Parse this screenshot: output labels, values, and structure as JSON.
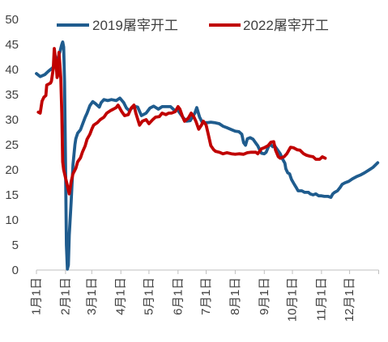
{
  "chart_data": {
    "type": "line",
    "xlim": [
      "01-01",
      "12-31"
    ],
    "ylim": [
      0,
      50
    ],
    "yticks": [
      "0",
      "5",
      "10",
      "15",
      "20",
      "25",
      "30",
      "35",
      "40",
      "45",
      "50"
    ],
    "xticks": [
      "1月1日",
      "2月1日",
      "3月1日",
      "4月1日",
      "5月1日",
      "6月1日",
      "7月1日",
      "8月1日",
      "9月1日",
      "10月1日",
      "11月1日",
      "12月1日"
    ],
    "grid": false,
    "legend": "top",
    "series": [
      {
        "name": "2019屠宰开工",
        "color": "#1F5C8E",
        "points": [
          [
            "01-01",
            39.2
          ],
          [
            "01-05",
            38.6
          ],
          [
            "01-10",
            39.0
          ],
          [
            "01-14",
            39.7
          ],
          [
            "01-18",
            40.3
          ],
          [
            "01-21",
            41.0
          ],
          [
            "01-23",
            41.8
          ],
          [
            "01-26",
            43.5
          ],
          [
            "01-28",
            45.0
          ],
          [
            "01-29",
            45.5
          ],
          [
            "01-30",
            44.5
          ],
          [
            "01-31",
            37.5
          ],
          [
            "02-01",
            21.0
          ],
          [
            "02-02",
            5.0
          ],
          [
            "02-03",
            0.2
          ],
          [
            "02-04",
            1.0
          ],
          [
            "02-05",
            7.0
          ],
          [
            "02-07",
            13.5
          ],
          [
            "02-09",
            21.0
          ],
          [
            "02-11",
            25.0
          ],
          [
            "02-12",
            26.2
          ],
          [
            "02-14",
            27.3
          ],
          [
            "02-17",
            28.0
          ],
          [
            "02-19",
            29.0
          ],
          [
            "02-22",
            30.5
          ],
          [
            "02-24",
            31.3
          ],
          [
            "02-27",
            32.8
          ],
          [
            "03-02",
            33.6
          ],
          [
            "03-05",
            33.2
          ],
          [
            "03-09",
            32.5
          ],
          [
            "03-11",
            33.4
          ],
          [
            "03-14",
            34.0
          ],
          [
            "03-18",
            33.8
          ],
          [
            "03-22",
            34.0
          ],
          [
            "03-27",
            33.8
          ],
          [
            "03-31",
            34.3
          ],
          [
            "04-04",
            33.4
          ],
          [
            "04-07",
            32.3
          ],
          [
            "04-10",
            31.8
          ],
          [
            "04-15",
            32.7
          ],
          [
            "04-19",
            32.5
          ],
          [
            "04-23",
            30.8
          ],
          [
            "04-28",
            31.3
          ],
          [
            "05-02",
            32.3
          ],
          [
            "05-06",
            32.7
          ],
          [
            "05-11",
            32.1
          ],
          [
            "05-15",
            32.6
          ],
          [
            "05-19",
            32.6
          ],
          [
            "05-24",
            32.6
          ],
          [
            "05-28",
            31.9
          ],
          [
            "06-01",
            31.8
          ],
          [
            "06-06",
            30.5
          ],
          [
            "06-10",
            29.7
          ],
          [
            "06-14",
            29.8
          ],
          [
            "06-19",
            31.3
          ],
          [
            "06-21",
            32.4
          ],
          [
            "06-24",
            30.5
          ],
          [
            "06-27",
            29.4
          ],
          [
            "07-02",
            29.4
          ],
          [
            "07-06",
            29.5
          ],
          [
            "07-10",
            29.4
          ],
          [
            "07-15",
            29.2
          ],
          [
            "07-19",
            28.7
          ],
          [
            "07-23",
            28.4
          ],
          [
            "07-28",
            28.0
          ],
          [
            "08-01",
            27.7
          ],
          [
            "08-05",
            27.6
          ],
          [
            "08-08",
            27.1
          ],
          [
            "08-10",
            25.4
          ],
          [
            "08-12",
            24.9
          ],
          [
            "08-14",
            26.2
          ],
          [
            "08-17",
            26.4
          ],
          [
            "08-20",
            26.1
          ],
          [
            "08-23",
            25.3
          ],
          [
            "08-25",
            24.8
          ],
          [
            "08-27",
            24.0
          ],
          [
            "08-29",
            23.3
          ],
          [
            "09-01",
            23.2
          ],
          [
            "09-03",
            23.5
          ],
          [
            "09-05",
            24.4
          ],
          [
            "09-07",
            25.2
          ],
          [
            "09-10",
            24.6
          ],
          [
            "09-12",
            24.8
          ],
          [
            "09-15",
            24.0
          ],
          [
            "09-18",
            23.2
          ],
          [
            "09-20",
            22.3
          ],
          [
            "09-23",
            21.3
          ],
          [
            "09-24",
            20.2
          ],
          [
            "09-26",
            19.4
          ],
          [
            "09-28",
            19.2
          ],
          [
            "09-30",
            18.1
          ],
          [
            "10-03",
            17.1
          ],
          [
            "10-05",
            16.5
          ],
          [
            "10-07",
            15.8
          ],
          [
            "10-11",
            15.8
          ],
          [
            "10-14",
            15.5
          ],
          [
            "10-18",
            15.5
          ],
          [
            "10-20",
            15.2
          ],
          [
            "10-23",
            15.0
          ],
          [
            "10-26",
            15.2
          ],
          [
            "10-29",
            14.8
          ],
          [
            "11-01",
            14.8
          ],
          [
            "11-04",
            14.7
          ],
          [
            "11-08",
            14.7
          ],
          [
            "11-11",
            14.5
          ],
          [
            "11-13",
            15.2
          ],
          [
            "11-15",
            15.5
          ],
          [
            "11-18",
            15.8
          ],
          [
            "11-21",
            16.5
          ],
          [
            "11-23",
            17.1
          ],
          [
            "11-26",
            17.4
          ],
          [
            "11-30",
            17.7
          ],
          [
            "12-04",
            18.2
          ],
          [
            "12-09",
            18.7
          ],
          [
            "12-13",
            19.0
          ],
          [
            "12-17",
            19.4
          ],
          [
            "12-22",
            20.0
          ],
          [
            "12-26",
            20.5
          ],
          [
            "12-31",
            21.4
          ]
        ]
      },
      {
        "name": "2022屠宰开工",
        "color": "#C00000",
        "points": [
          [
            "01-03",
            31.5
          ],
          [
            "01-05",
            31.3
          ],
          [
            "01-07",
            33.7
          ],
          [
            "01-09",
            34.5
          ],
          [
            "01-11",
            34.8
          ],
          [
            "01-12",
            36.9
          ],
          [
            "01-14",
            37.1
          ],
          [
            "01-16",
            37.3
          ],
          [
            "01-17",
            37.7
          ],
          [
            "01-19",
            40.2
          ],
          [
            "01-20",
            44.2
          ],
          [
            "01-22",
            41.0
          ],
          [
            "01-23",
            38.4
          ],
          [
            "01-24",
            39.0
          ],
          [
            "01-25",
            43.4
          ],
          [
            "01-26",
            41.0
          ],
          [
            "01-27",
            38.1
          ],
          [
            "01-28",
            31.3
          ],
          [
            "01-29",
            21.6
          ],
          [
            "01-30",
            20.0
          ],
          [
            "02-01",
            18.4
          ],
          [
            "02-03",
            16.8
          ],
          [
            "02-05",
            15.2
          ],
          [
            "02-07",
            17.6
          ],
          [
            "02-09",
            19.2
          ],
          [
            "02-12",
            20.3
          ],
          [
            "02-14",
            21.6
          ],
          [
            "02-17",
            22.4
          ],
          [
            "02-19",
            23.5
          ],
          [
            "02-22",
            24.8
          ],
          [
            "02-24",
            26.1
          ],
          [
            "02-27",
            27.1
          ],
          [
            "03-01",
            28.1
          ],
          [
            "03-03",
            28.9
          ],
          [
            "03-07",
            29.4
          ],
          [
            "03-10",
            30.0
          ],
          [
            "03-14",
            30.5
          ],
          [
            "03-17",
            31.3
          ],
          [
            "03-21",
            31.8
          ],
          [
            "03-24",
            32.1
          ],
          [
            "03-27",
            32.4
          ],
          [
            "03-29",
            32.9
          ],
          [
            "04-02",
            31.6
          ],
          [
            "04-05",
            30.8
          ],
          [
            "04-09",
            31.0
          ],
          [
            "04-12",
            32.3
          ],
          [
            "04-15",
            32.9
          ],
          [
            "04-17",
            31.3
          ],
          [
            "04-21",
            28.9
          ],
          [
            "04-24",
            29.7
          ],
          [
            "04-28",
            30.0
          ],
          [
            "05-01",
            29.2
          ],
          [
            "05-05",
            30.0
          ],
          [
            "05-08",
            30.5
          ],
          [
            "05-12",
            30.6
          ],
          [
            "05-15",
            31.3
          ],
          [
            "05-19",
            31.0
          ],
          [
            "05-22",
            31.3
          ],
          [
            "05-25",
            31.3
          ],
          [
            "05-29",
            31.6
          ],
          [
            "06-01",
            32.6
          ],
          [
            "06-03",
            32.1
          ],
          [
            "06-06",
            30.5
          ],
          [
            "06-08",
            29.7
          ],
          [
            "06-12",
            30.3
          ],
          [
            "06-15",
            31.3
          ],
          [
            "06-18",
            30.5
          ],
          [
            "06-20",
            29.7
          ],
          [
            "06-23",
            28.1
          ],
          [
            "06-26",
            28.9
          ],
          [
            "06-28",
            29.7
          ],
          [
            "07-01",
            28.9
          ],
          [
            "07-03",
            27.3
          ],
          [
            "07-06",
            24.8
          ],
          [
            "07-09",
            24.0
          ],
          [
            "07-11",
            23.7
          ],
          [
            "07-15",
            23.5
          ],
          [
            "07-19",
            23.2
          ],
          [
            "07-23",
            23.4
          ],
          [
            "07-28",
            23.2
          ],
          [
            "08-01",
            23.1
          ],
          [
            "08-05",
            23.2
          ],
          [
            "08-10",
            23.1
          ],
          [
            "08-14",
            23.4
          ],
          [
            "08-18",
            23.5
          ],
          [
            "08-23",
            23.5
          ],
          [
            "08-25",
            23.2
          ],
          [
            "08-29",
            24.2
          ],
          [
            "09-01",
            24.4
          ],
          [
            "09-05",
            24.8
          ],
          [
            "09-08",
            25.5
          ],
          [
            "09-11",
            25.6
          ],
          [
            "09-13",
            23.9
          ],
          [
            "09-16",
            22.6
          ],
          [
            "09-18",
            22.3
          ],
          [
            "09-22",
            22.6
          ],
          [
            "09-25",
            23.2
          ],
          [
            "09-29",
            24.5
          ],
          [
            "10-02",
            24.4
          ],
          [
            "10-06",
            24.0
          ],
          [
            "10-09",
            23.9
          ],
          [
            "10-13",
            23.2
          ],
          [
            "10-16",
            22.9
          ],
          [
            "10-20",
            22.7
          ],
          [
            "10-23",
            22.6
          ],
          [
            "10-26",
            22.1
          ],
          [
            "10-30",
            22.1
          ],
          [
            "11-02",
            22.6
          ],
          [
            "11-05",
            22.3
          ]
        ]
      }
    ]
  }
}
